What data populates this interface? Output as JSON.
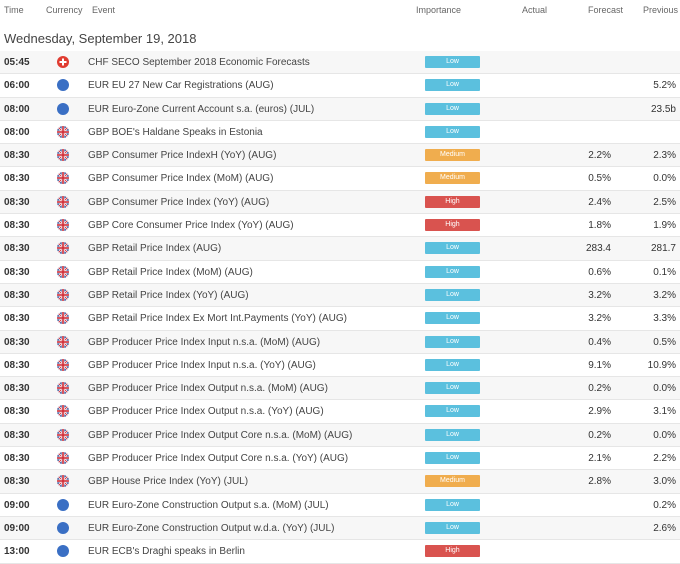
{
  "header": {
    "time": "Time",
    "currency": "Currency",
    "event": "Event",
    "importance": "Importance",
    "actual": "Actual",
    "forecast": "Forecast",
    "previous": "Previous"
  },
  "date": "Wednesday, September 19, 2018",
  "colors": {
    "low": "#5bc0de",
    "medium": "#f0ad4e",
    "high": "#d9534f",
    "eur_flag": "#3a6fc4",
    "chf_flag": "#e03c31"
  },
  "rows": [
    {
      "time": "05:45",
      "flag": "chf-flag-icon",
      "event": "CHF SECO September 2018 Economic Forecasts",
      "importance": "Low",
      "level": "low",
      "actual": "",
      "forecast": "",
      "previous": ""
    },
    {
      "time": "06:00",
      "flag": "eur-flag-icon",
      "event": "EUR EU 27 New Car Registrations (AUG)",
      "importance": "Low",
      "level": "low",
      "actual": "",
      "forecast": "",
      "previous": "5.2%"
    },
    {
      "time": "08:00",
      "flag": "eur-flag-icon",
      "event": "EUR Euro-Zone Current Account s.a. (euros) (JUL)",
      "importance": "Low",
      "level": "low",
      "actual": "",
      "forecast": "",
      "previous": "23.5b"
    },
    {
      "time": "08:00",
      "flag": "gbp-flag-icon",
      "event": "GBP BOE's Haldane Speaks in Estonia",
      "importance": "Low",
      "level": "low",
      "actual": "",
      "forecast": "",
      "previous": ""
    },
    {
      "time": "08:30",
      "flag": "gbp-flag-icon",
      "event": "GBP Consumer Price IndexH (YoY) (AUG)",
      "importance": "Medium",
      "level": "medium",
      "actual": "",
      "forecast": "2.2%",
      "previous": "2.3%"
    },
    {
      "time": "08:30",
      "flag": "gbp-flag-icon",
      "event": "GBP Consumer Price Index (MoM) (AUG)",
      "importance": "Medium",
      "level": "medium",
      "actual": "",
      "forecast": "0.5%",
      "previous": "0.0%"
    },
    {
      "time": "08:30",
      "flag": "gbp-flag-icon",
      "event": "GBP Consumer Price Index (YoY) (AUG)",
      "importance": "High",
      "level": "high",
      "actual": "",
      "forecast": "2.4%",
      "previous": "2.5%"
    },
    {
      "time": "08:30",
      "flag": "gbp-flag-icon",
      "event": "GBP Core Consumer Price Index (YoY) (AUG)",
      "importance": "High",
      "level": "high",
      "actual": "",
      "forecast": "1.8%",
      "previous": "1.9%"
    },
    {
      "time": "08:30",
      "flag": "gbp-flag-icon",
      "event": "GBP Retail Price Index (AUG)",
      "importance": "Low",
      "level": "low",
      "actual": "",
      "forecast": "283.4",
      "previous": "281.7"
    },
    {
      "time": "08:30",
      "flag": "gbp-flag-icon",
      "event": "GBP Retail Price Index (MoM) (AUG)",
      "importance": "Low",
      "level": "low",
      "actual": "",
      "forecast": "0.6%",
      "previous": "0.1%"
    },
    {
      "time": "08:30",
      "flag": "gbp-flag-icon",
      "event": "GBP Retail Price Index (YoY) (AUG)",
      "importance": "Low",
      "level": "low",
      "actual": "",
      "forecast": "3.2%",
      "previous": "3.2%"
    },
    {
      "time": "08:30",
      "flag": "gbp-flag-icon",
      "event": "GBP Retail Price Index Ex Mort Int.Payments (YoY) (AUG)",
      "importance": "Low",
      "level": "low",
      "actual": "",
      "forecast": "3.2%",
      "previous": "3.3%"
    },
    {
      "time": "08:30",
      "flag": "gbp-flag-icon",
      "event": "GBP Producer Price Index Input n.s.a. (MoM) (AUG)",
      "importance": "Low",
      "level": "low",
      "actual": "",
      "forecast": "0.4%",
      "previous": "0.5%"
    },
    {
      "time": "08:30",
      "flag": "gbp-flag-icon",
      "event": "GBP Producer Price Index Input n.s.a. (YoY) (AUG)",
      "importance": "Low",
      "level": "low",
      "actual": "",
      "forecast": "9.1%",
      "previous": "10.9%"
    },
    {
      "time": "08:30",
      "flag": "gbp-flag-icon",
      "event": "GBP Producer Price Index Output n.s.a. (MoM) (AUG)",
      "importance": "Low",
      "level": "low",
      "actual": "",
      "forecast": "0.2%",
      "previous": "0.0%"
    },
    {
      "time": "08:30",
      "flag": "gbp-flag-icon",
      "event": "GBP Producer Price Index Output n.s.a. (YoY) (AUG)",
      "importance": "Low",
      "level": "low",
      "actual": "",
      "forecast": "2.9%",
      "previous": "3.1%"
    },
    {
      "time": "08:30",
      "flag": "gbp-flag-icon",
      "event": "GBP Producer Price Index Output Core n.s.a. (MoM) (AUG)",
      "importance": "Low",
      "level": "low",
      "actual": "",
      "forecast": "0.2%",
      "previous": "0.0%"
    },
    {
      "time": "08:30",
      "flag": "gbp-flag-icon",
      "event": "GBP Producer Price Index Output Core n.s.a. (YoY) (AUG)",
      "importance": "Low",
      "level": "low",
      "actual": "",
      "forecast": "2.1%",
      "previous": "2.2%"
    },
    {
      "time": "08:30",
      "flag": "gbp-flag-icon",
      "event": "GBP House Price Index (YoY) (JUL)",
      "importance": "Medium",
      "level": "medium",
      "actual": "",
      "forecast": "2.8%",
      "previous": "3.0%"
    },
    {
      "time": "09:00",
      "flag": "eur-flag-icon",
      "event": "EUR Euro-Zone Construction Output s.a. (MoM) (JUL)",
      "importance": "Low",
      "level": "low",
      "actual": "",
      "forecast": "",
      "previous": "0.2%"
    },
    {
      "time": "09:00",
      "flag": "eur-flag-icon",
      "event": "EUR Euro-Zone Construction Output w.d.a. (YoY) (JUL)",
      "importance": "Low",
      "level": "low",
      "actual": "",
      "forecast": "",
      "previous": "2.6%"
    },
    {
      "time": "13:00",
      "flag": "eur-flag-icon",
      "event": "EUR ECB's Draghi speaks in Berlin",
      "importance": "High",
      "level": "high",
      "actual": "",
      "forecast": "",
      "previous": ""
    }
  ]
}
